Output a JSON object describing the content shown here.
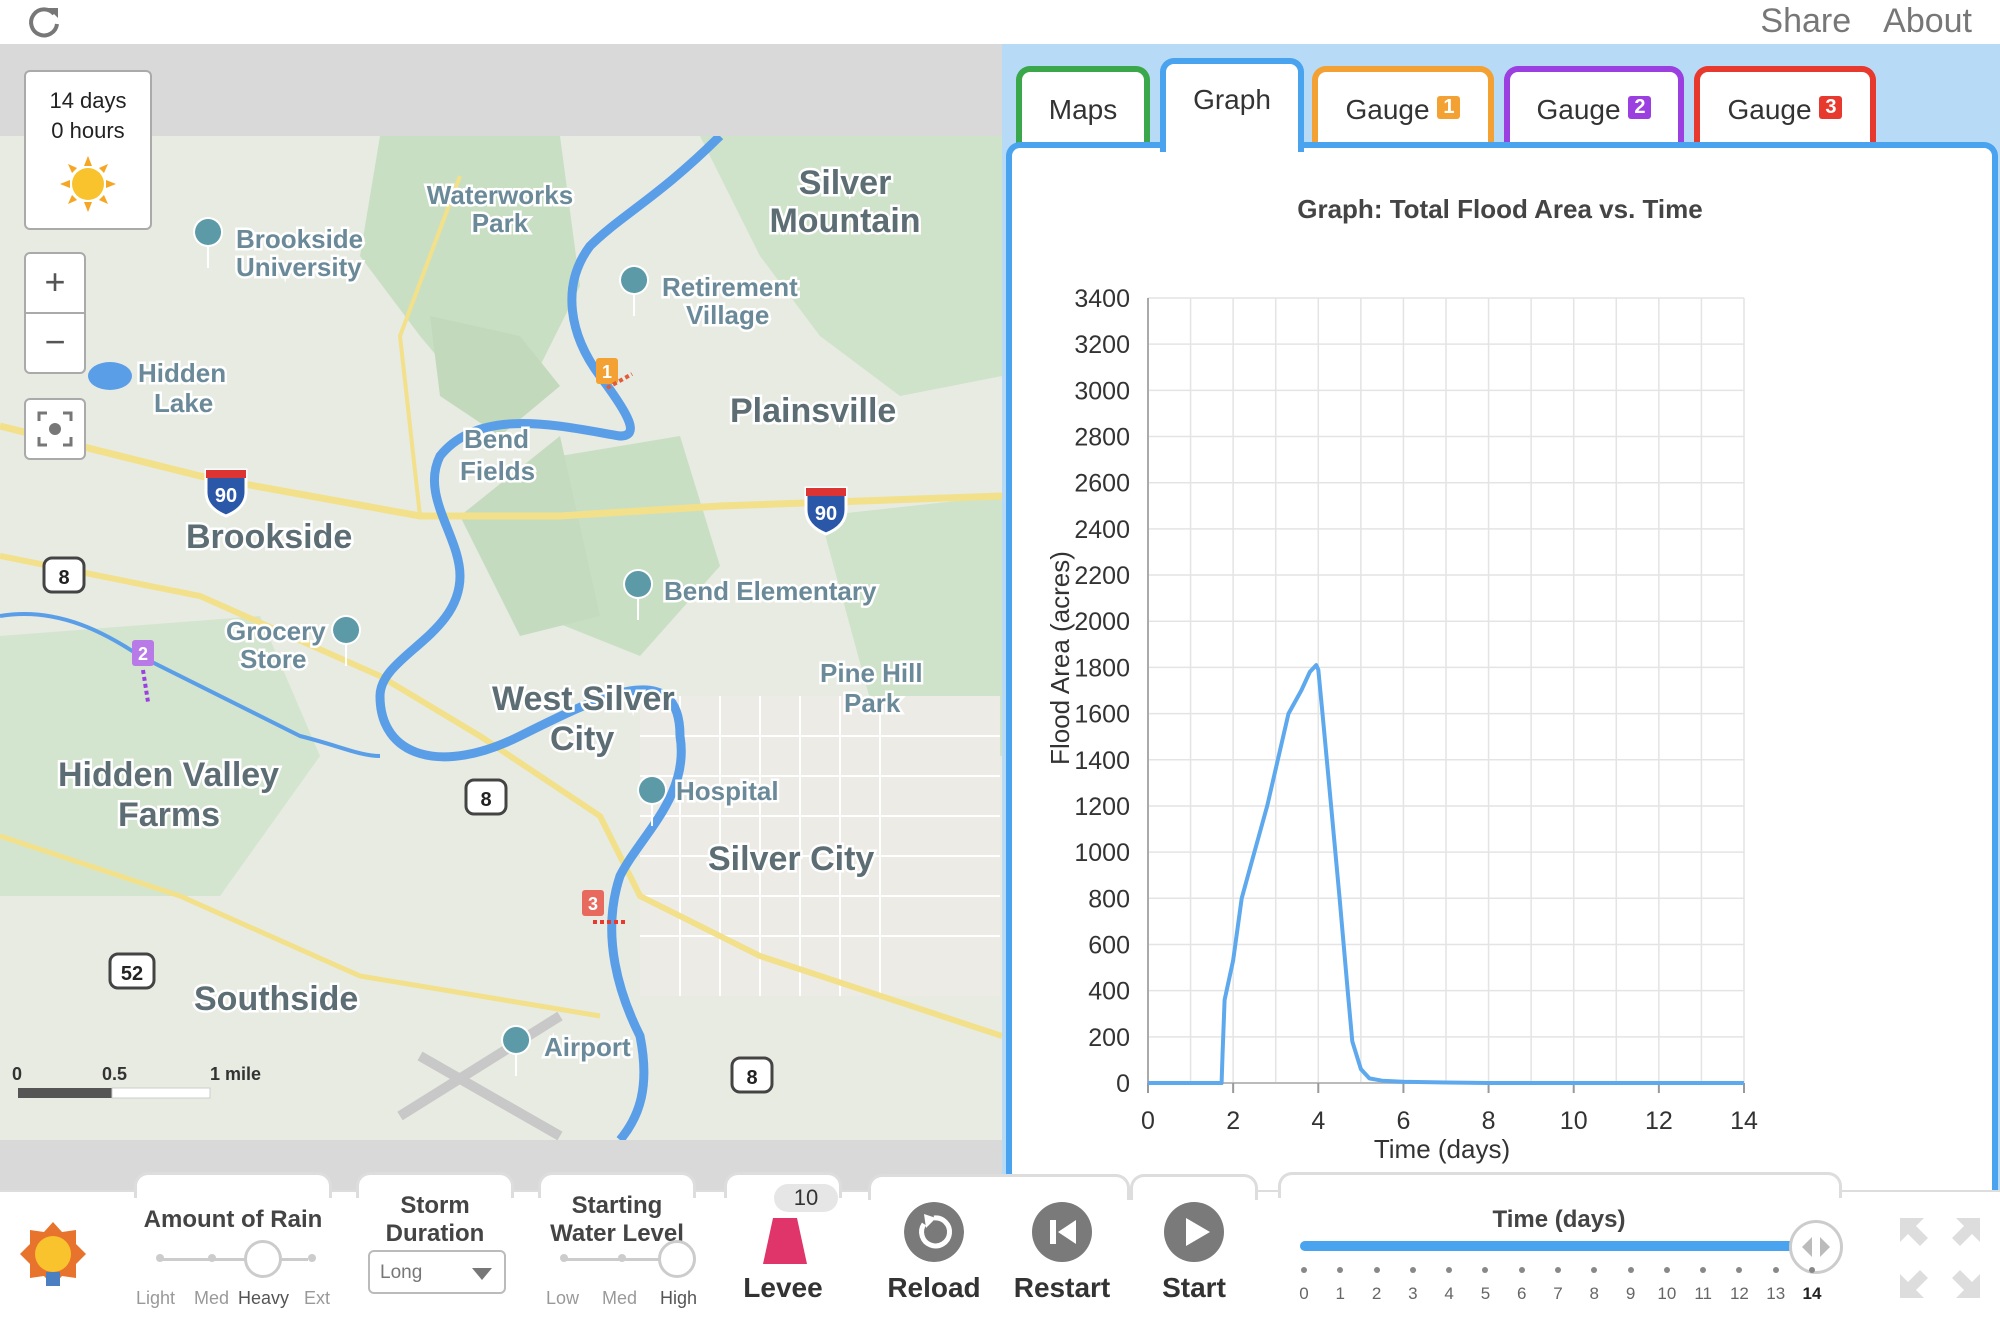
{
  "topbar": {
    "share_label": "Share",
    "about_label": "About"
  },
  "clock": {
    "days": "14 days",
    "hours": "0 hours"
  },
  "map": {
    "zoom_in": "+",
    "zoom_out": "−",
    "places": [
      {
        "name": "Waterworks",
        "line2": "Park"
      },
      {
        "name": "Silver",
        "line2": "Mountain"
      },
      {
        "name": "Brookside",
        "line2": "University"
      },
      {
        "name": "Retirement",
        "line2": "Village"
      },
      {
        "name": "Hidden",
        "line2": "Lake"
      },
      {
        "name": "Plainsville",
        "line2": ""
      },
      {
        "name": "Bend",
        "line2": "Fields"
      },
      {
        "name": "Brookside",
        "line2": ""
      },
      {
        "name": "Bend Elementary",
        "line2": ""
      },
      {
        "name": "Grocery",
        "line2": "Store"
      },
      {
        "name": "Pine Hill",
        "line2": "Park"
      },
      {
        "name": "West Silver",
        "line2": "City"
      },
      {
        "name": "Hidden Valley",
        "line2": "Farms"
      },
      {
        "name": "Hospital",
        "line2": ""
      },
      {
        "name": "Silver City",
        "line2": ""
      },
      {
        "name": "Southside",
        "line2": ""
      },
      {
        "name": "Airport",
        "line2": ""
      }
    ],
    "highways": {
      "i90": "90",
      "us8": "8",
      "us52": "52"
    },
    "gauges": {
      "g1": "1",
      "g2": "2",
      "g3": "3"
    },
    "scale": {
      "zero": "0",
      "half": "0.5",
      "mile": "1 mile"
    }
  },
  "tabs": [
    {
      "label": "Maps",
      "color": "#3aa84a"
    },
    {
      "label": "Graph",
      "color": "#4aa3ee"
    },
    {
      "label": "Gauge",
      "badge": "1",
      "color": "#f2a132"
    },
    {
      "label": "Gauge",
      "badge": "2",
      "color": "#9b3fe0"
    },
    {
      "label": "Gauge",
      "badge": "3",
      "color": "#e8392e"
    }
  ],
  "chart_data": {
    "type": "line",
    "title": "Graph: Total Flood Area vs. Time",
    "xlabel": "Time (days)",
    "ylabel": "Flood Area (acres)",
    "xlim": [
      0,
      14
    ],
    "ylim": [
      0,
      3400
    ],
    "xticks": [
      0,
      2,
      4,
      6,
      8,
      10,
      12,
      14
    ],
    "yticks": [
      0,
      200,
      400,
      600,
      800,
      1000,
      1200,
      1400,
      1600,
      1800,
      2000,
      2200,
      2400,
      2600,
      2800,
      3000,
      3200,
      3400
    ],
    "grid": true,
    "color": "#5ea9ee",
    "series": [
      {
        "x": [
          0,
          1.73,
          1.75,
          1.8,
          2.0,
          2.2,
          2.5,
          2.8,
          3.0,
          3.3,
          3.6,
          3.8,
          3.95,
          4.0,
          4.1,
          4.3,
          4.5,
          4.7,
          4.8,
          5.0,
          5.2,
          5.5,
          6.0,
          7.0,
          8.0,
          10.0,
          12.0,
          14.0
        ],
        "y": [
          0,
          0,
          120,
          360,
          530,
          800,
          1000,
          1200,
          1360,
          1600,
          1700,
          1780,
          1810,
          1790,
          1600,
          1200,
          800,
          380,
          180,
          60,
          20,
          10,
          5,
          2,
          0,
          0,
          0,
          0
        ]
      }
    ]
  },
  "controls": {
    "rain": {
      "title": "Amount of Rain",
      "options": [
        "Light",
        "Med",
        "Heavy",
        "Ext"
      ],
      "selected": "Heavy"
    },
    "duration": {
      "title1": "Storm",
      "title2": "Duration",
      "value": "Long"
    },
    "water": {
      "title1": "Starting",
      "title2": "Water Level",
      "options": [
        "Low",
        "Med",
        "High"
      ],
      "selected": "High"
    },
    "levee": {
      "count": "10",
      "label": "Levee"
    },
    "reload": {
      "label": "Reload"
    },
    "restart": {
      "label": "Restart"
    },
    "start": {
      "label": "Start"
    },
    "time": {
      "title": "Time (days)",
      "ticks": [
        "0",
        "1",
        "2",
        "3",
        "4",
        "5",
        "6",
        "7",
        "8",
        "9",
        "10",
        "11",
        "12",
        "13",
        "14"
      ],
      "value": 14,
      "max": 14
    }
  }
}
